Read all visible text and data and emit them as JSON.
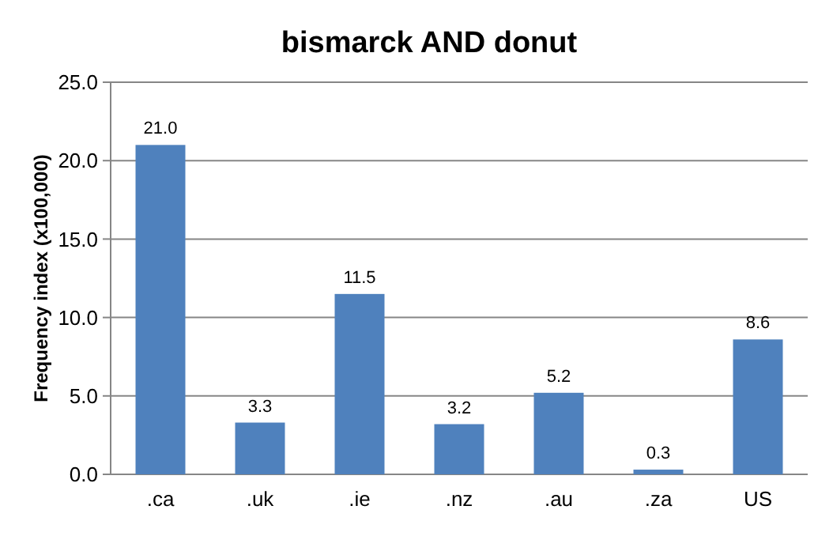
{
  "chart_data": {
    "type": "bar",
    "title": "bismarck AND donut",
    "ylabel": "Frequency index (x100,000)",
    "categories": [
      ".ca",
      ".uk",
      ".ie",
      ".nz",
      ".au",
      ".za",
      "US"
    ],
    "values": [
      21.0,
      3.3,
      11.5,
      3.2,
      5.2,
      0.3,
      8.6
    ],
    "color": "#4f81bd",
    "ylim": [
      0,
      25
    ],
    "yticks": [
      {
        "value": 0,
        "label": "0.0"
      },
      {
        "value": 5,
        "label": "5.0"
      },
      {
        "value": 10,
        "label": "10.0"
      },
      {
        "value": 15,
        "label": "15.0"
      },
      {
        "value": 20,
        "label": "20.0"
      },
      {
        "value": 25,
        "label": "25.0"
      }
    ],
    "grid": true,
    "value_labels": [
      "21.0",
      "3.3",
      "11.5",
      "3.2",
      "5.2",
      "0.3",
      "8.6"
    ]
  }
}
